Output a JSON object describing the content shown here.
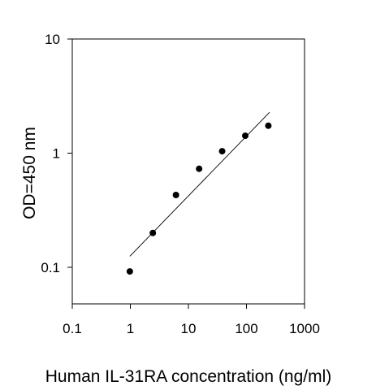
{
  "chart_data": {
    "type": "scatter",
    "title": "",
    "xlabel": "Human IL-31RA concentration (ng/ml)",
    "ylabel": "OD=450 nm",
    "xscale": "log",
    "yscale": "log",
    "xlim": [
      0.1,
      1000
    ],
    "ylim": [
      0.05,
      10
    ],
    "x_ticks": [
      "0.1",
      "1",
      "10",
      "100",
      "1000"
    ],
    "y_ticks": [
      "0.1",
      "1",
      "10"
    ],
    "grid": false,
    "legend": "none",
    "marker_color": "#000000",
    "series": [
      {
        "x": [
          0.98,
          2.44,
          6.1,
          15.3,
          38.1,
          95.3,
          238
        ],
        "y": [
          0.092,
          0.2,
          0.43,
          0.73,
          1.04,
          1.42,
          1.74
        ]
      }
    ],
    "trendline": {
      "x": [
        0.98,
        250
      ],
      "y": [
        0.125,
        2.28
      ]
    }
  }
}
